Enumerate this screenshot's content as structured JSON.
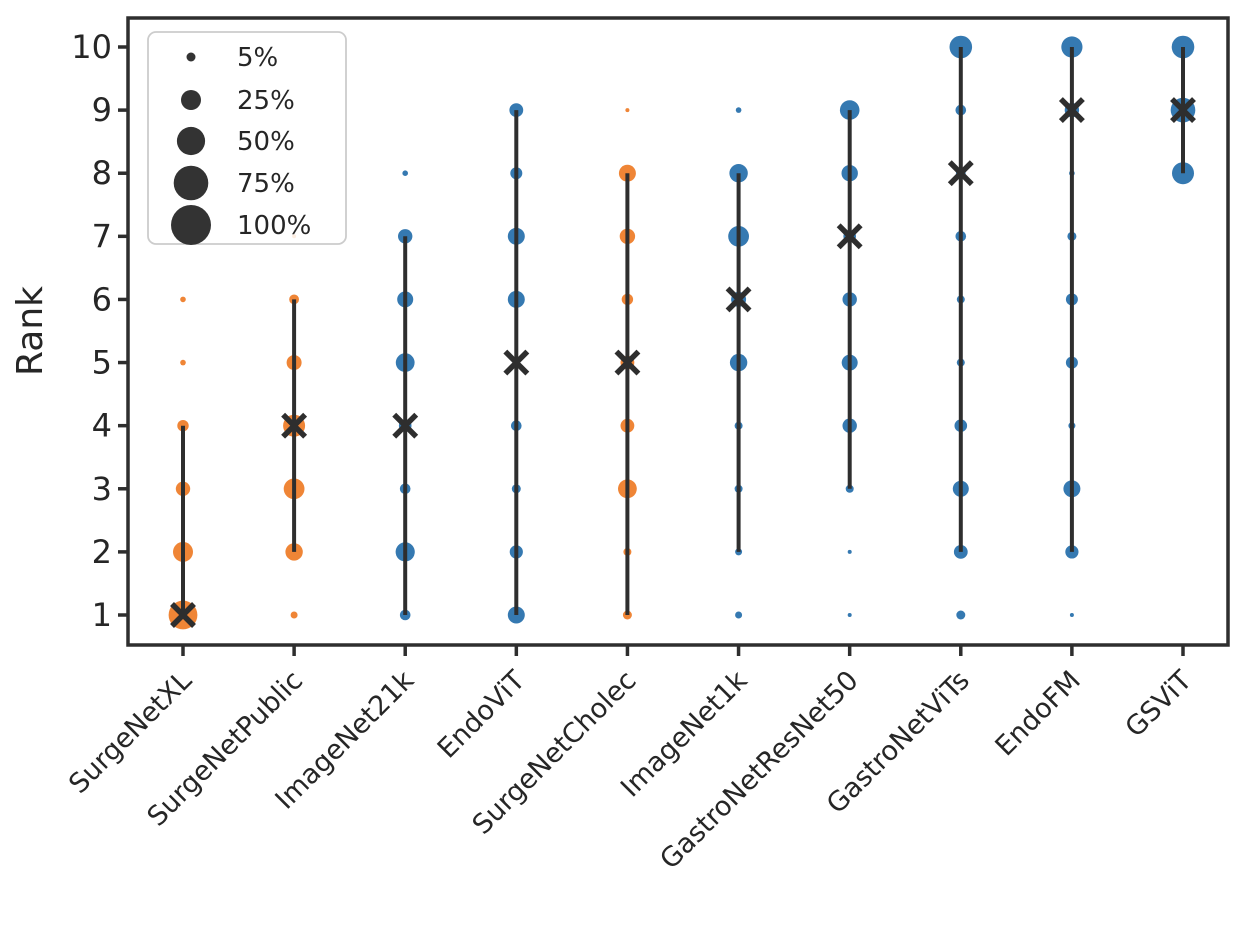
{
  "chart_data": {
    "type": "scatter",
    "title": "",
    "xlabel": "",
    "ylabel": "Rank",
    "ylim": [
      1,
      10
    ],
    "yticks": [
      "1",
      "2",
      "3",
      "4",
      "5",
      "6",
      "7",
      "8",
      "9",
      "10"
    ],
    "grid": false,
    "size_encoding": "bubble area proportional to percentage of datasets achieving that rank",
    "colors": {
      "bubble_orange": "#ef8536",
      "bubble_blue": "#3579b1",
      "line_dark": "#2e2e2e",
      "text_dark": "#262626",
      "legend_border": "#cccccc"
    },
    "legend": {
      "position": "upper left",
      "entries": [
        {
          "label": "5%",
          "pct": 5
        },
        {
          "label": "25%",
          "pct": 25
        },
        {
          "label": "50%",
          "pct": 50
        },
        {
          "label": "75%",
          "pct": 75
        },
        {
          "label": "100%",
          "pct": 100
        }
      ]
    },
    "series": [
      {
        "model": "SurgeNetXL",
        "color": "#ef8536",
        "median_rank": 1,
        "rank_range": [
          1,
          4
        ],
        "points": [
          {
            "rank": 1,
            "pct": 52
          },
          {
            "rank": 2,
            "pct": 25
          },
          {
            "rank": 3,
            "pct": 13
          },
          {
            "rank": 4,
            "pct": 8
          },
          {
            "rank": 5,
            "pct": 2
          },
          {
            "rank": 6,
            "pct": 2
          }
        ]
      },
      {
        "model": "SurgeNetPublic",
        "color": "#ef8536",
        "median_rank": 4,
        "rank_range": [
          2,
          6
        ],
        "points": [
          {
            "rank": 1,
            "pct": 3
          },
          {
            "rank": 2,
            "pct": 19
          },
          {
            "rank": 3,
            "pct": 27
          },
          {
            "rank": 4,
            "pct": 30
          },
          {
            "rank": 5,
            "pct": 14
          },
          {
            "rank": 6,
            "pct": 6
          },
          {
            "rank": 7,
            "pct": 1
          }
        ]
      },
      {
        "model": "ImageNet21k",
        "color": "#3579b1",
        "median_rank": 4,
        "rank_range": [
          1,
          7
        ],
        "points": [
          {
            "rank": 1,
            "pct": 7
          },
          {
            "rank": 2,
            "pct": 23
          },
          {
            "rank": 3,
            "pct": 7
          },
          {
            "rank": 4,
            "pct": 10
          },
          {
            "rank": 5,
            "pct": 22
          },
          {
            "rank": 6,
            "pct": 16
          },
          {
            "rank": 7,
            "pct": 13
          },
          {
            "rank": 8,
            "pct": 2
          }
        ]
      },
      {
        "model": "EndoViT",
        "color": "#3579b1",
        "median_rank": 5,
        "rank_range": [
          1,
          9
        ],
        "points": [
          {
            "rank": 1,
            "pct": 18
          },
          {
            "rank": 2,
            "pct": 11
          },
          {
            "rank": 3,
            "pct": 5
          },
          {
            "rank": 4,
            "pct": 7
          },
          {
            "rank": 5,
            "pct": 2
          },
          {
            "rank": 6,
            "pct": 18
          },
          {
            "rank": 7,
            "pct": 18
          },
          {
            "rank": 8,
            "pct": 9
          },
          {
            "rank": 9,
            "pct": 12
          }
        ]
      },
      {
        "model": "SurgeNetCholec",
        "color": "#ef8536",
        "median_rank": 5,
        "rank_range": [
          1,
          8
        ],
        "points": [
          {
            "rank": 1,
            "pct": 5
          },
          {
            "rank": 2,
            "pct": 4
          },
          {
            "rank": 3,
            "pct": 22
          },
          {
            "rank": 4,
            "pct": 12
          },
          {
            "rank": 5,
            "pct": 12
          },
          {
            "rank": 6,
            "pct": 8
          },
          {
            "rank": 7,
            "pct": 15
          },
          {
            "rank": 8,
            "pct": 18
          },
          {
            "rank": 9,
            "pct": 1
          }
        ]
      },
      {
        "model": "ImageNet1k",
        "color": "#3579b1",
        "median_rank": 6,
        "rank_range": [
          2,
          8
        ],
        "points": [
          {
            "rank": 1,
            "pct": 3
          },
          {
            "rank": 2,
            "pct": 3
          },
          {
            "rank": 3,
            "pct": 4
          },
          {
            "rank": 4,
            "pct": 4
          },
          {
            "rank": 5,
            "pct": 19
          },
          {
            "rank": 6,
            "pct": 14
          },
          {
            "rank": 7,
            "pct": 27
          },
          {
            "rank": 8,
            "pct": 21
          },
          {
            "rank": 9,
            "pct": 2
          }
        ]
      },
      {
        "model": "GastroNetResNet50",
        "color": "#3579b1",
        "median_rank": 7,
        "rank_range": [
          3,
          9
        ],
        "points": [
          {
            "rank": 1,
            "pct": 1
          },
          {
            "rank": 2,
            "pct": 1
          },
          {
            "rank": 3,
            "pct": 4
          },
          {
            "rank": 4,
            "pct": 13
          },
          {
            "rank": 5,
            "pct": 16
          },
          {
            "rank": 6,
            "pct": 13
          },
          {
            "rank": 7,
            "pct": 10
          },
          {
            "rank": 8,
            "pct": 17
          },
          {
            "rank": 9,
            "pct": 24
          }
        ]
      },
      {
        "model": "GastroNetViTs",
        "color": "#3579b1",
        "median_rank": 8,
        "rank_range": [
          2,
          10
        ],
        "points": [
          {
            "rank": 1,
            "pct": 5
          },
          {
            "rank": 2,
            "pct": 12
          },
          {
            "rank": 3,
            "pct": 16
          },
          {
            "rank": 4,
            "pct": 10
          },
          {
            "rank": 5,
            "pct": 4
          },
          {
            "rank": 6,
            "pct": 4
          },
          {
            "rank": 7,
            "pct": 7
          },
          {
            "rank": 8,
            "pct": 6
          },
          {
            "rank": 9,
            "pct": 7
          },
          {
            "rank": 10,
            "pct": 32
          }
        ]
      },
      {
        "model": "EndoFM",
        "color": "#3579b1",
        "median_rank": 9,
        "rank_range": [
          2,
          10
        ],
        "points": [
          {
            "rank": 1,
            "pct": 1
          },
          {
            "rank": 2,
            "pct": 11
          },
          {
            "rank": 3,
            "pct": 18
          },
          {
            "rank": 4,
            "pct": 3
          },
          {
            "rank": 5,
            "pct": 9
          },
          {
            "rank": 6,
            "pct": 9
          },
          {
            "rank": 7,
            "pct": 5
          },
          {
            "rank": 8,
            "pct": 2
          },
          {
            "rank": 9,
            "pct": 13
          },
          {
            "rank": 10,
            "pct": 28
          }
        ]
      },
      {
        "model": "GSViT",
        "color": "#3579b1",
        "median_rank": 9,
        "rank_range": [
          8,
          10
        ],
        "points": [
          {
            "rank": 8,
            "pct": 30
          },
          {
            "rank": 9,
            "pct": 38
          },
          {
            "rank": 10,
            "pct": 32
          }
        ]
      }
    ]
  }
}
